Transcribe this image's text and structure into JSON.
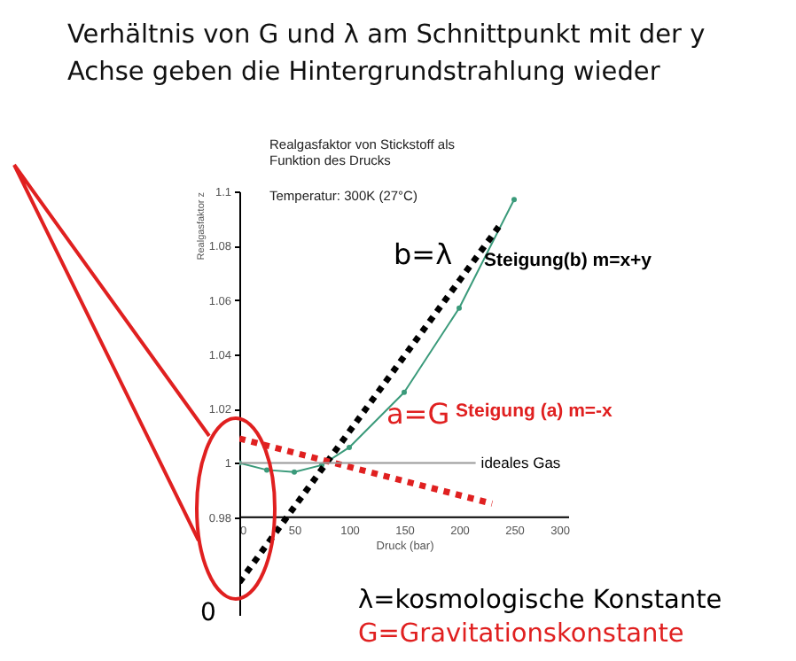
{
  "chart_data": {
    "type": "line",
    "title": "Verhältnis von G und λ am Schnittpunkt mit der y Achse geben die Hintergrundstrahlung wieder",
    "subtitle": "Realgasfaktor von Stickstoff als Funktion des Drucks",
    "xlabel": "Druck (bar)",
    "ylabel": "Realgasfaktor z",
    "xlim": [
      0,
      300
    ],
    "xticks": [
      0,
      50,
      100,
      150,
      200,
      250,
      300
    ],
    "ylim": [
      0.944,
      1.1
    ],
    "yticks": [
      0.98,
      1,
      1.02,
      1.04,
      1.06,
      1.08,
      1.1
    ],
    "grid": false,
    "ref_lines": [
      {
        "axis": "y",
        "value": 0.98,
        "color": "#000000"
      }
    ],
    "series": [
      {
        "color": "#3a9a7a",
        "marker": "circle",
        "line_style": "solid",
        "x": [
          0,
          25,
          50,
          75,
          100,
          150,
          200,
          250
        ],
        "values": [
          1.0,
          0.9974,
          0.9966,
          0.9992,
          1.0057,
          1.026,
          1.057,
          1.097
        ]
      },
      {
        "color": "#000000",
        "marker": "none",
        "line_style": "dotted",
        "x": [
          0,
          236
        ],
        "values": [
          0.956,
          1.087
        ]
      },
      {
        "color": "#e02020",
        "marker": "none",
        "line_style": "dotted",
        "x": [
          0,
          230
        ],
        "values": [
          1.009,
          0.985
        ]
      },
      {
        "name": "ideales Gas",
        "color": "#999999",
        "marker": "none",
        "line_style": "solid",
        "x": [
          0,
          215
        ],
        "values": [
          1,
          1
        ]
      }
    ],
    "annotations": [
      "Temperatur: 300K  (27°C)",
      "b=λ",
      "Steigung(b) m=x+y",
      "a=G",
      "Steigung (a) m=-x",
      "λ=kosmologische Konstante",
      "G=Gravitationskonstante",
      "0"
    ]
  }
}
